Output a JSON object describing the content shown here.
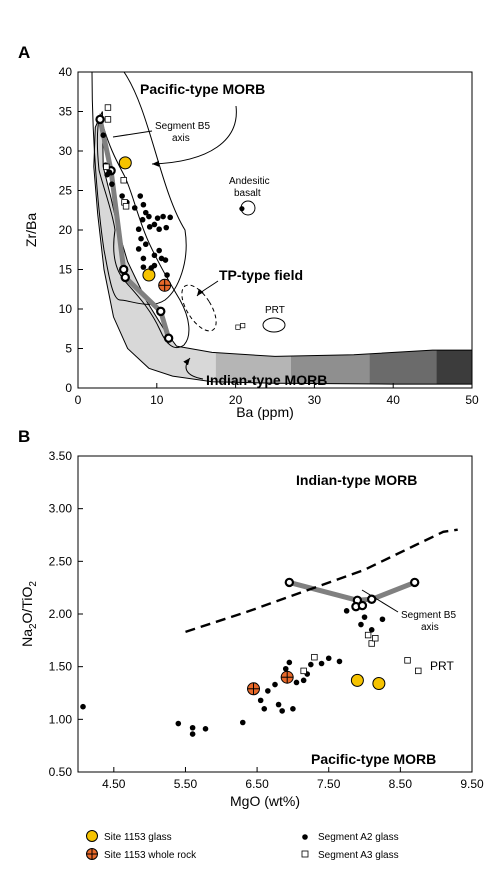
{
  "chart_data": [
    {
      "panel": "A",
      "type": "scatter",
      "xlabel": "Ba (ppm)",
      "ylabel": "Zr/Ba",
      "xlim": [
        0,
        50
      ],
      "ylim": [
        0,
        40
      ],
      "xticks": [
        "0",
        "10",
        "20",
        "30",
        "40",
        "50"
      ],
      "yticks": [
        "0",
        "5",
        "10",
        "15",
        "20",
        "25",
        "30",
        "35",
        "40"
      ],
      "annotations": {
        "pacific": "Pacific-type MORB",
        "indian": "Indian-type MORB",
        "tp_field": "TP-type field",
        "segment_axis_line1": "Segment B5",
        "segment_axis_line2": "axis",
        "andesitic_line1": "Andesitic",
        "andesitic_line2": "basalt",
        "prt": "PRT"
      },
      "series": [
        {
          "name": "Segment B5 axis",
          "style": "thick-line",
          "points": [
            [
              2.8,
              34
            ],
            [
              4.2,
              27.5
            ],
            [
              5.8,
              15
            ],
            [
              6,
              14
            ],
            [
              10.5,
              9.7
            ],
            [
              11.5,
              6.3
            ]
          ]
        },
        {
          "name": "Site 1153 glass",
          "points": [
            [
              6,
              28.5
            ],
            [
              9,
              14.3
            ]
          ]
        },
        {
          "name": "Site 1153 whole rock",
          "points": [
            [
              11,
              13
            ]
          ]
        },
        {
          "name": "Segment A2 glass",
          "points": [
            [
              3.2,
              32
            ],
            [
              3.5,
              28.2
            ],
            [
              3.7,
              27
            ],
            [
              4,
              27.3
            ],
            [
              4.3,
              25.8
            ],
            [
              5.6,
              24.3
            ],
            [
              6.2,
              23.5
            ],
            [
              7.9,
              24.3
            ],
            [
              8.3,
              23.2
            ],
            [
              7.2,
              22.8
            ],
            [
              8.6,
              22.2
            ],
            [
              9,
              21.7
            ],
            [
              8.2,
              21.3
            ],
            [
              10.1,
              21.5
            ],
            [
              10.8,
              21.7
            ],
            [
              11.7,
              21.6
            ],
            [
              9.7,
              20.7
            ],
            [
              9.1,
              20.4
            ],
            [
              10.3,
              20.1
            ],
            [
              11.2,
              20.3
            ],
            [
              7.7,
              20.1
            ],
            [
              8,
              18.9
            ],
            [
              8.6,
              18.2
            ],
            [
              7.7,
              17.6
            ],
            [
              9.7,
              16.8
            ],
            [
              10.3,
              17.4
            ],
            [
              10.6,
              16.4
            ],
            [
              8.3,
              16.4
            ],
            [
              9.7,
              15.5
            ],
            [
              11.1,
              16.2
            ],
            [
              8.3,
              15.3
            ],
            [
              9.3,
              15.2
            ],
            [
              11.3,
              14.3
            ]
          ]
        },
        {
          "name": "Segment A3 glass",
          "points": [
            [
              3.8,
              35.5
            ],
            [
              3.8,
              34
            ],
            [
              3.6,
              28
            ],
            [
              5.8,
              26.3
            ],
            [
              5.9,
              23.5
            ],
            [
              6.1,
              23
            ]
          ]
        },
        {
          "name": "Andesitic basalt",
          "points": [
            [
              20.8,
              22.7
            ]
          ]
        },
        {
          "name": "PRT",
          "points": [
            [
              20.3,
              7.7
            ],
            [
              20.9,
              7.9
            ]
          ]
        }
      ]
    },
    {
      "panel": "B",
      "type": "scatter",
      "xlabel": "MgO (wt%)",
      "ylabel": "Na2O/TiO2",
      "ylabel_main": "Na",
      "ylabel_sub1": "2",
      "ylabel_mid": "O/TiO",
      "ylabel_sub2": "2",
      "xlim": [
        4,
        9.5
      ],
      "ylim": [
        0.5,
        3.5
      ],
      "xticks": [
        "4.50",
        "5.50",
        "6.50",
        "7.50",
        "8.50",
        "9.50"
      ],
      "yticks": [
        "0.50",
        "1.00",
        "1.50",
        "2.00",
        "2.50",
        "3.00",
        "3.50"
      ],
      "annotations": {
        "indian": "Indian-type MORB",
        "pacific": "Pacific-type MORB",
        "segment_axis_line1": "Segment B5",
        "segment_axis_line2": "axis",
        "prt": "PRT"
      },
      "series": [
        {
          "name": "Segment B5 axis",
          "style": "thick-line",
          "points": [
            [
              6.95,
              2.3
            ],
            [
              7.9,
              2.13
            ],
            [
              8.1,
              2.14
            ],
            [
              8.7,
              2.3
            ]
          ]
        },
        {
          "name": "Segment B5 axis extra",
          "points": [
            [
              7.88,
              2.07
            ],
            [
              7.97,
              2.08
            ]
          ]
        },
        {
          "name": "Dividing line",
          "style": "dashed",
          "points": [
            [
              5.5,
              1.83
            ],
            [
              6.4,
              2.03
            ],
            [
              7.3,
              2.25
            ],
            [
              8.0,
              2.42
            ],
            [
              8.7,
              2.65
            ],
            [
              9.1,
              2.78
            ],
            [
              9.3,
              2.8
            ]
          ]
        },
        {
          "name": "Site 1153 glass",
          "points": [
            [
              7.9,
              1.37
            ],
            [
              8.2,
              1.34
            ]
          ]
        },
        {
          "name": "Site 1153 whole rock",
          "points": [
            [
              6.45,
              1.29
            ],
            [
              6.92,
              1.4
            ]
          ]
        },
        {
          "name": "Segment A2 glass",
          "points": [
            [
              4.07,
              1.12
            ],
            [
              5.4,
              0.96
            ],
            [
              5.6,
              0.92
            ],
            [
              5.6,
              0.86
            ],
            [
              5.78,
              0.91
            ],
            [
              6.3,
              0.97
            ],
            [
              6.55,
              1.18
            ],
            [
              6.6,
              1.1
            ],
            [
              6.65,
              1.27
            ],
            [
              6.8,
              1.14
            ],
            [
              6.85,
              1.08
            ],
            [
              6.75,
              1.33
            ],
            [
              6.9,
              1.48
            ],
            [
              6.95,
              1.54
            ],
            [
              7.0,
              1.1
            ],
            [
              7.05,
              1.35
            ],
            [
              7.15,
              1.37
            ],
            [
              7.25,
              1.52
            ],
            [
              7.2,
              1.43
            ],
            [
              7.4,
              1.53
            ],
            [
              7.5,
              1.58
            ],
            [
              7.65,
              1.55
            ],
            [
              7.75,
              2.03
            ],
            [
              7.95,
              1.9
            ],
            [
              8.0,
              1.97
            ],
            [
              8.1,
              1.85
            ],
            [
              8.25,
              1.95
            ]
          ]
        },
        {
          "name": "Segment A3 glass",
          "points": [
            [
              7.3,
              1.59
            ],
            [
              7.15,
              1.46
            ],
            [
              8.05,
              1.8
            ],
            [
              8.1,
              1.72
            ],
            [
              8.15,
              1.77
            ],
            [
              8.6,
              1.56
            ],
            [
              8.75,
              1.46
            ]
          ]
        }
      ]
    }
  ],
  "legend": [
    {
      "label": "Site 1153 glass",
      "marker": "yellow-circle"
    },
    {
      "label": "Site 1153 whole rock",
      "marker": "orange-cross-circle"
    },
    {
      "label": "Segment A2 glass",
      "marker": "black-dot"
    },
    {
      "label": "Segment A3 glass",
      "marker": "open-square"
    }
  ],
  "panel_labels": [
    "A",
    "B"
  ],
  "colors": {
    "glass_fill": "#f6c300",
    "whole_rock_fill": "#e8692a",
    "field_grey": "#d8d8d8",
    "segment_line": "#808080",
    "gradient": [
      "#d8d8d8",
      "#b5b5b5",
      "#8f8f8f",
      "#6b6b6b",
      "#3c3c3c",
      "#000000"
    ]
  }
}
